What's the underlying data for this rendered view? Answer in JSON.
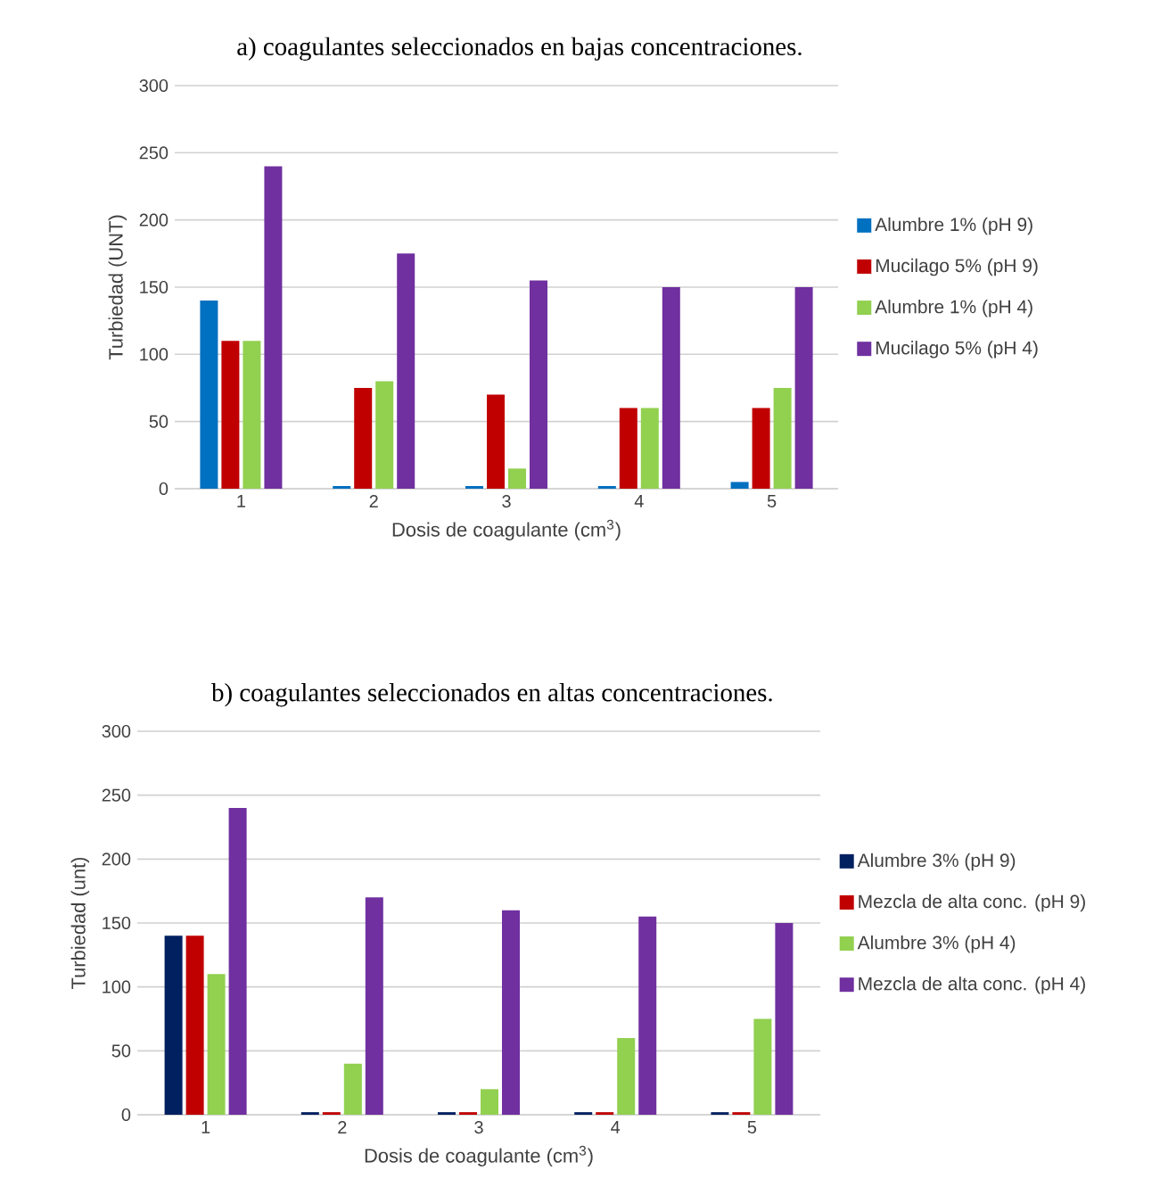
{
  "chart_data": [
    {
      "type": "bar",
      "title": "a) coagulantes seleccionados en bajas concentraciones.",
      "xlabel": "Dosis de coagulante (cm$^{3}$)",
      "ylabel": "Turbiedad (UNT)",
      "categories": [
        "1",
        "2",
        "3",
        "4",
        "5"
      ],
      "ylim": [
        0,
        300
      ],
      "yticks": [
        0,
        50,
        100,
        150,
        200,
        250,
        300
      ],
      "grid": "y",
      "legend": "right",
      "series": [
        {
          "name": "Alumbre 1% (pH 9)",
          "color": "#0070c0",
          "values": [
            140,
            2,
            2,
            2,
            5
          ]
        },
        {
          "name": "Mucilago 5% (pH 9)",
          "color": "#c00000",
          "values": [
            110,
            75,
            70,
            60,
            60
          ]
        },
        {
          "name": "Alumbre 1% (pH 4)",
          "color": "#92d050",
          "values": [
            110,
            80,
            15,
            60,
            75
          ]
        },
        {
          "name": "Mucilago 5% (pH 4)",
          "color": "#7030a0",
          "values": [
            240,
            175,
            155,
            150,
            150
          ]
        }
      ]
    },
    {
      "type": "bar",
      "title": "b) coagulantes seleccionados en altas concentraciones.",
      "xlabel": "Dosis de coagulante (cm$^{3}$)",
      "ylabel": "Turbiedad (unt)",
      "categories": [
        "1",
        "2",
        "3",
        "4",
        "5"
      ],
      "ylim": [
        0,
        300
      ],
      "yticks": [
        0,
        50,
        100,
        150,
        200,
        250,
        300
      ],
      "grid": "y",
      "legend": "right",
      "series": [
        {
          "name": "Alumbre 3% (pH 9)",
          "color": "#002060",
          "values": [
            140,
            2,
            2,
            2,
            2
          ]
        },
        {
          "name": "Mezcla de alta conc. (pH 9)",
          "color": "#c00000",
          "values": [
            140,
            2,
            2,
            2,
            2
          ]
        },
        {
          "name": "Alumbre 3% (pH 4)",
          "color": "#92d050",
          "values": [
            110,
            40,
            20,
            60,
            75
          ]
        },
        {
          "name": "Mezcla de alta conc. (pH 4)",
          "color": "#7030a0",
          "values": [
            240,
            170,
            160,
            155,
            150
          ]
        }
      ]
    }
  ]
}
